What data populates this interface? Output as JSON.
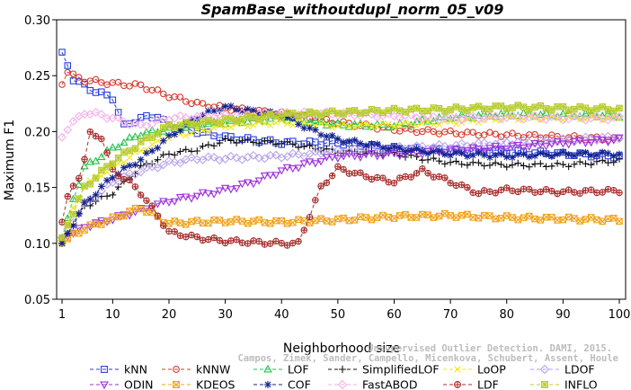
{
  "chart_data": {
    "type": "line",
    "title": "SpamBase_withoutdupl_norm_05_v09",
    "xlabel": "Neighborhood size",
    "ylabel": "Maximum F1",
    "xlim": [
      0,
      100
    ],
    "ylim": [
      0.05,
      0.3
    ],
    "xticks": [
      1,
      10,
      20,
      30,
      40,
      50,
      60,
      70,
      80,
      90,
      100
    ],
    "yticks": [
      "0.05",
      "0.10",
      "0.15",
      "0.20",
      "0.25",
      "0.30"
    ],
    "credit": [
      "Campos, Zimek, Sander, Campello, Micenkova, Schubert, Assent, Houle",
      "Unsupervised Outlier Detection. DAMI, 2015."
    ],
    "series": [
      {
        "name": "kNN",
        "color": "#2a3fd8",
        "marker": "square",
        "lineStyle": "dashed",
        "x": [
          1,
          3,
          6,
          10,
          12,
          15,
          18,
          20,
          30,
          40,
          50,
          60,
          70,
          80,
          90,
          100
        ],
        "y": [
          0.271,
          0.247,
          0.238,
          0.23,
          0.205,
          0.212,
          0.214,
          0.205,
          0.195,
          0.19,
          0.19,
          0.185,
          0.183,
          0.182,
          0.18,
          0.178
        ]
      },
      {
        "name": "kNNW",
        "color": "#d63b2f",
        "marker": "circle",
        "lineStyle": "dashed",
        "x": [
          1,
          2,
          3,
          5,
          10,
          15,
          20,
          25,
          30,
          40,
          50,
          60,
          70,
          80,
          90,
          100
        ],
        "y": [
          0.242,
          0.253,
          0.25,
          0.246,
          0.243,
          0.241,
          0.232,
          0.225,
          0.221,
          0.216,
          0.208,
          0.202,
          0.199,
          0.197,
          0.195,
          0.193
        ]
      },
      {
        "name": "LOF",
        "color": "#22c24a",
        "marker": "triangle-up",
        "lineStyle": "dashed",
        "x": [
          1,
          3,
          5,
          10,
          15,
          20,
          30,
          40,
          50,
          60,
          70,
          80,
          90,
          100
        ],
        "y": [
          0.105,
          0.14,
          0.168,
          0.185,
          0.198,
          0.202,
          0.208,
          0.212,
          0.206,
          0.205,
          0.213,
          0.215,
          0.215,
          0.214
        ]
      },
      {
        "name": "SimplifiedLOF",
        "color": "#111111",
        "marker": "plus",
        "lineStyle": "dashed",
        "x": [
          1,
          3,
          5,
          10,
          15,
          20,
          25,
          30,
          40,
          50,
          60,
          70,
          80,
          90,
          100
        ],
        "y": [
          0.1,
          0.118,
          0.133,
          0.145,
          0.168,
          0.18,
          0.184,
          0.192,
          0.19,
          0.182,
          0.18,
          0.172,
          0.17,
          0.17,
          0.174
        ]
      },
      {
        "name": "LoOP",
        "color": "#f2e61c",
        "marker": "x",
        "lineStyle": "dashed",
        "x": [
          1,
          3,
          5,
          10,
          15,
          20,
          30,
          40,
          50,
          60,
          70,
          80,
          90,
          100
        ],
        "y": [
          0.104,
          0.13,
          0.152,
          0.168,
          0.183,
          0.195,
          0.205,
          0.208,
          0.205,
          0.206,
          0.208,
          0.212,
          0.212,
          0.212
        ]
      },
      {
        "name": "LDOF",
        "color": "#b9a3ea",
        "marker": "diamond",
        "lineStyle": "dashed",
        "x": [
          1,
          5,
          10,
          15,
          20,
          25,
          30,
          40,
          50,
          60,
          70,
          80,
          90,
          100
        ],
        "y": [
          0.105,
          0.135,
          0.155,
          0.165,
          0.172,
          0.176,
          0.176,
          0.178,
          0.182,
          0.185,
          0.187,
          0.19,
          0.192,
          0.195
        ]
      },
      {
        "name": "ODIN",
        "color": "#9b2fdb",
        "marker": "triangle-down",
        "lineStyle": "dashed",
        "x": [
          1,
          5,
          10,
          15,
          20,
          25,
          30,
          35,
          40,
          45,
          50,
          60,
          70,
          80,
          90,
          100
        ],
        "y": [
          0.103,
          0.115,
          0.122,
          0.13,
          0.138,
          0.143,
          0.148,
          0.155,
          0.165,
          0.172,
          0.178,
          0.18,
          0.183,
          0.186,
          0.19,
          0.193
        ]
      },
      {
        "name": "KDEOS",
        "color": "#f0a21c",
        "marker": "square-x",
        "lineStyle": "dashed",
        "x": [
          1,
          3,
          6,
          10,
          15,
          18,
          20,
          30,
          40,
          50,
          60,
          70,
          80,
          90,
          100
        ],
        "y": [
          0.1,
          0.108,
          0.115,
          0.122,
          0.132,
          0.123,
          0.118,
          0.12,
          0.119,
          0.121,
          0.124,
          0.125,
          0.123,
          0.122,
          0.121
        ]
      },
      {
        "name": "COF",
        "color": "#14238f",
        "marker": "asterisk",
        "lineStyle": "dashed",
        "x": [
          1,
          5,
          10,
          15,
          20,
          25,
          30,
          35,
          40,
          45,
          50,
          60,
          70,
          80,
          90,
          100
        ],
        "y": [
          0.1,
          0.135,
          0.16,
          0.175,
          0.195,
          0.213,
          0.222,
          0.218,
          0.215,
          0.202,
          0.193,
          0.185,
          0.18,
          0.178,
          0.18,
          0.18
        ]
      },
      {
        "name": "FastABOD",
        "color": "#f5aee8",
        "marker": "diamond-open",
        "lineStyle": "dashed",
        "x": [
          1,
          3,
          5,
          8,
          10,
          15,
          20,
          30,
          40,
          50,
          60,
          70,
          80,
          90,
          100
        ],
        "y": [
          0.195,
          0.208,
          0.217,
          0.215,
          0.212,
          0.205,
          0.212,
          0.214,
          0.216,
          0.216,
          0.214,
          0.212,
          0.213,
          0.212,
          0.212
        ]
      },
      {
        "name": "LDF",
        "color": "#a82d2d",
        "marker": "circle-plus",
        "lineStyle": "dashed",
        "x": [
          1,
          2,
          4,
          5,
          6,
          8,
          10,
          13,
          15,
          18,
          20,
          25,
          30,
          40,
          43,
          45,
          47,
          50,
          55,
          60,
          65,
          70,
          75,
          80,
          90,
          100
        ],
        "y": [
          0.119,
          0.142,
          0.16,
          0.175,
          0.198,
          0.195,
          0.165,
          0.155,
          0.145,
          0.125,
          0.11,
          0.105,
          0.102,
          0.1,
          0.1,
          0.125,
          0.15,
          0.167,
          0.16,
          0.155,
          0.165,
          0.155,
          0.145,
          0.148,
          0.146,
          0.147
        ]
      },
      {
        "name": "INFLO",
        "color": "#b7cc2c",
        "marker": "star-box",
        "lineStyle": "dashed",
        "x": [
          1,
          5,
          10,
          15,
          20,
          30,
          40,
          50,
          60,
          70,
          80,
          90,
          100
        ],
        "y": [
          0.105,
          0.15,
          0.173,
          0.19,
          0.205,
          0.21,
          0.215,
          0.217,
          0.219,
          0.22,
          0.222,
          0.221,
          0.22
        ]
      }
    ]
  }
}
